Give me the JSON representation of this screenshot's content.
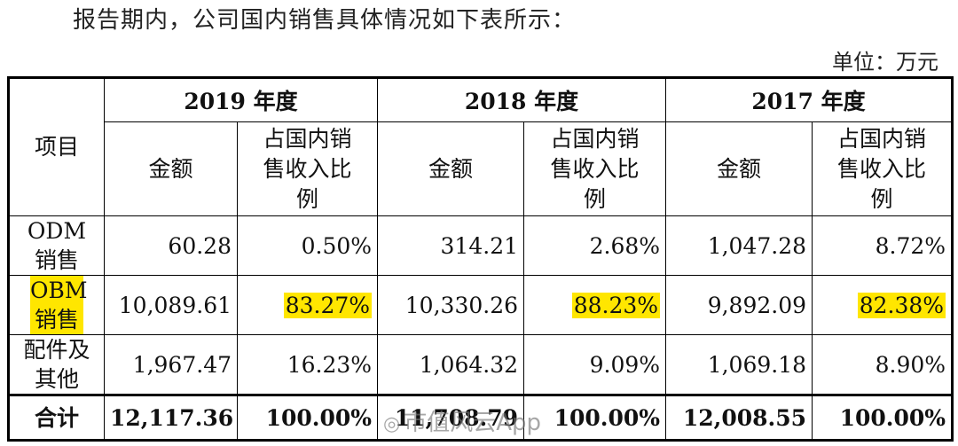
{
  "intro_text": "报告期内，公司国内销售具体情况如下表所示：",
  "unit": "单位：万元",
  "table": {
    "item_header": "项目",
    "years": [
      "2019 年度",
      "2018 年度",
      "2017 年度"
    ],
    "amount_header": "金额",
    "ratio_header": "占国内销售收入比例",
    "rows": [
      {
        "label": "ODM销售",
        "cells": [
          "60.28",
          "0.50%",
          "314.21",
          "2.68%",
          "1,047.28",
          "8.72%"
        ]
      },
      {
        "label": "OBM销售",
        "cells": [
          "10,089.61",
          "83.27%",
          "10,330.26",
          "88.23%",
          "9,892.09",
          "82.38%"
        ]
      },
      {
        "label": "配件及其他",
        "cells": [
          "1,967.47",
          "16.23%",
          "1,064.32",
          "9.09%",
          "1,069.18",
          "8.90%"
        ]
      }
    ],
    "total": {
      "label": "合计",
      "cells": [
        "12,117.36",
        "100.00%",
        "11,708.79",
        "100.00%",
        "12,008.55",
        "100.00%"
      ]
    }
  },
  "highlight_color": "#ffe600",
  "watermark": {
    "icon": "weibo-icon",
    "text": "市值风云App"
  }
}
